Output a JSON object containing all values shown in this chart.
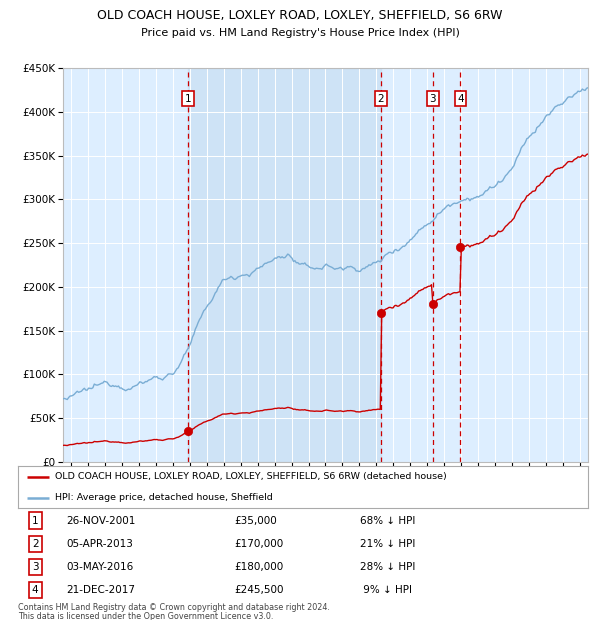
{
  "title": "OLD COACH HOUSE, LOXLEY ROAD, LOXLEY, SHEFFIELD, S6 6RW",
  "subtitle": "Price paid vs. HM Land Registry's House Price Index (HPI)",
  "ylim": [
    0,
    450000
  ],
  "xlim_start": 1994.5,
  "xlim_end": 2025.5,
  "background_color": "#ffffff",
  "plot_bg_color": "#ddeeff",
  "grid_color": "#ffffff",
  "red_line_color": "#cc0000",
  "blue_line_color": "#7aadd4",
  "dashed_line_color": "#cc0000",
  "legend_entries": [
    "OLD COACH HOUSE, LOXLEY ROAD, LOXLEY, SHEFFIELD, S6 6RW (detached house)",
    "HPI: Average price, detached house, Sheffield"
  ],
  "sales": [
    {
      "num": 1,
      "date": "26-NOV-2001",
      "price": 35000,
      "pct": "68%",
      "year": 2001.9
    },
    {
      "num": 2,
      "date": "05-APR-2013",
      "price": 170000,
      "pct": "21%",
      "year": 2013.27
    },
    {
      "num": 3,
      "date": "03-MAY-2016",
      "price": 180000,
      "pct": "28%",
      "year": 2016.33
    },
    {
      "num": 4,
      "date": "21-DEC-2017",
      "price": 245500,
      "pct": "9%",
      "year": 2017.97
    }
  ],
  "footer_line1": "Contains HM Land Registry data © Crown copyright and database right 2024.",
  "footer_line2": "This data is licensed under the Open Government Licence v3.0.",
  "shaded_region": [
    2001.9,
    2013.27
  ],
  "yticks": [
    0,
    50000,
    100000,
    150000,
    200000,
    250000,
    300000,
    350000,
    400000,
    450000
  ]
}
